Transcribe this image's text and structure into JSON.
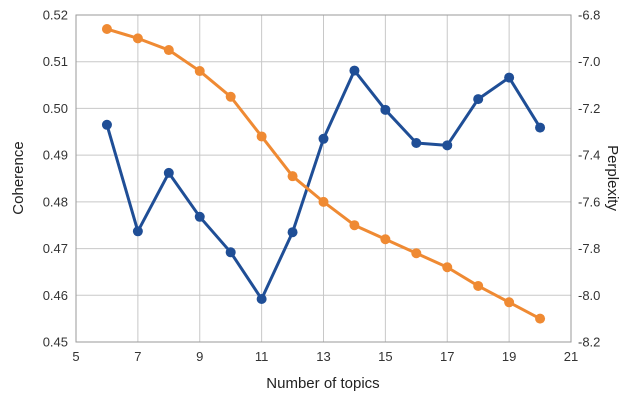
{
  "chart_data": {
    "type": "line",
    "xlabel": "Number of topics",
    "ylabel": "Coherence",
    "y2label": "Perplexity",
    "xlim": [
      5,
      21
    ],
    "x_ticks": [
      5,
      7,
      9,
      11,
      13,
      15,
      17,
      19,
      21
    ],
    "ylim": [
      0.45,
      0.52
    ],
    "y_ticks": [
      0.45,
      0.46,
      0.47,
      0.48,
      0.49,
      0.5,
      0.51,
      0.52
    ],
    "y2lim": [
      -8.2,
      -6.8
    ],
    "y2_ticks": [
      -6.8,
      -7.0,
      -7.2,
      -7.4,
      -7.6,
      -7.8,
      -8.0,
      -8.2
    ],
    "grid": true,
    "series": [
      {
        "axis": "left",
        "color": "#1f4e96",
        "x": [
          6,
          7,
          8,
          9,
          10,
          11,
          12,
          13,
          14,
          15,
          16,
          17,
          18,
          19,
          20
        ],
        "values": [
          0.4965,
          0.4737,
          0.4862,
          0.4768,
          0.4692,
          0.4592,
          0.4735,
          0.4935,
          0.5081,
          0.4997,
          0.4926,
          0.4921,
          0.502,
          0.5066,
          0.4959
        ]
      },
      {
        "axis": "right",
        "color": "#ef8a33",
        "x": [
          6,
          7,
          8,
          9,
          10,
          11,
          12,
          13,
          14,
          15,
          16,
          17,
          18,
          19,
          20
        ],
        "values": [
          -6.86,
          -6.9,
          -6.95,
          -7.04,
          -7.15,
          -7.32,
          -7.49,
          -7.6,
          -7.7,
          -7.76,
          -7.82,
          -7.88,
          -7.96,
          -8.03,
          -8.1
        ]
      }
    ]
  }
}
